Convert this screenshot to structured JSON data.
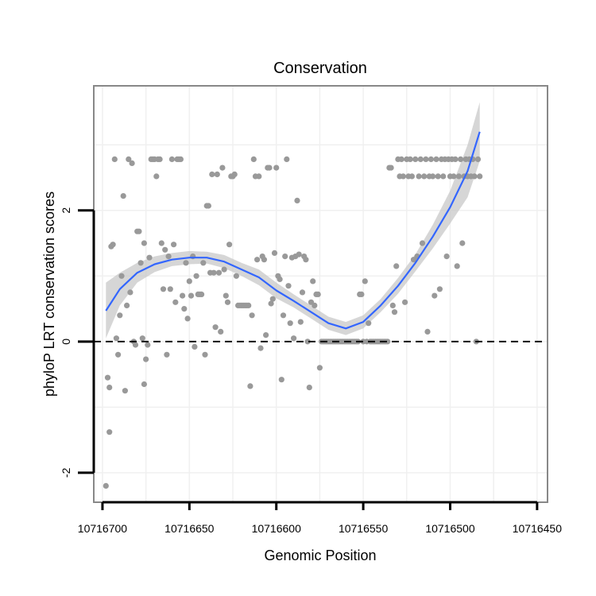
{
  "chart_data": {
    "type": "scatter",
    "title": "Conservation",
    "xlabel": "Genomic Position",
    "ylabel": "phyloP LRT conservation scores",
    "x_reversed": true,
    "xlim": [
      10716705,
      10716444
    ],
    "ylim": [
      -2.45,
      3.9
    ],
    "x_ticks": [
      {
        "value": 10716700,
        "label": "10716700"
      },
      {
        "value": 10716650,
        "label": "10716650"
      },
      {
        "value": 10716600,
        "label": "10716600"
      },
      {
        "value": 10716550,
        "label": "10716550"
      },
      {
        "value": 10716500,
        "label": "10716500"
      },
      {
        "value": 10716450,
        "label": "10716450"
      }
    ],
    "y_ticks": [
      {
        "value": -2,
        "label": "-2"
      },
      {
        "value": 0,
        "label": "0"
      },
      {
        "value": 2,
        "label": "2"
      }
    ],
    "reference_line": {
      "y": 0,
      "style": "dashed"
    },
    "colors": {
      "points": "#999999",
      "smooth_line": "#3366ff",
      "confidence_band": "#c8c8c8",
      "panel_border": "#888888",
      "grid": "#f0f0f0"
    },
    "series": [
      {
        "name": "scores",
        "kind": "points",
        "points": [
          [
            10716698,
            -2.2
          ],
          [
            10716697,
            -0.55
          ],
          [
            10716696,
            -1.38
          ],
          [
            10716696,
            -0.7
          ],
          [
            10716695,
            1.45
          ],
          [
            10716694,
            1.48
          ],
          [
            10716693,
            2.78
          ],
          [
            10716692,
            0.05
          ],
          [
            10716691,
            -0.2
          ],
          [
            10716690,
            0.4
          ],
          [
            10716689,
            1.0
          ],
          [
            10716688,
            2.22
          ],
          [
            10716687,
            -0.75
          ],
          [
            10716686,
            0.55
          ],
          [
            10716685,
            2.78
          ],
          [
            10716684,
            0.75
          ],
          [
            10716683,
            2.72
          ],
          [
            10716682,
            0.0
          ],
          [
            10716681,
            -0.05
          ],
          [
            10716680,
            1.68
          ],
          [
            10716679,
            1.68
          ],
          [
            10716678,
            1.2
          ],
          [
            10716677,
            0.05
          ],
          [
            10716676,
            1.5
          ],
          [
            10716676,
            -0.65
          ],
          [
            10716675,
            -0.27
          ],
          [
            10716674,
            -0.05
          ],
          [
            10716673,
            1.28
          ],
          [
            10716672,
            2.78
          ],
          [
            10716671,
            2.78
          ],
          [
            10716670,
            2.78
          ],
          [
            10716669,
            2.52
          ],
          [
            10716668,
            2.78
          ],
          [
            10716667,
            2.78
          ],
          [
            10716666,
            1.5
          ],
          [
            10716665,
            0.8
          ],
          [
            10716664,
            1.4
          ],
          [
            10716663,
            -0.2
          ],
          [
            10716662,
            1.3
          ],
          [
            10716661,
            0.8
          ],
          [
            10716660,
            2.78
          ],
          [
            10716659,
            1.48
          ],
          [
            10716658,
            0.6
          ],
          [
            10716657,
            2.78
          ],
          [
            10716656,
            2.78
          ],
          [
            10716655,
            2.78
          ],
          [
            10716654,
            0.7
          ],
          [
            10716653,
            0.5
          ],
          [
            10716652,
            1.2
          ],
          [
            10716651,
            0.35
          ],
          [
            10716650,
            0.92
          ],
          [
            10716649,
            0.7
          ],
          [
            10716648,
            1.3
          ],
          [
            10716647,
            -0.08
          ],
          [
            10716646,
            1.0
          ],
          [
            10716645,
            0.72
          ],
          [
            10716644,
            0.72
          ],
          [
            10716643,
            0.72
          ],
          [
            10716642,
            1.2
          ],
          [
            10716641,
            -0.2
          ],
          [
            10716640,
            2.07
          ],
          [
            10716639,
            2.07
          ],
          [
            10716638,
            1.05
          ],
          [
            10716637,
            2.55
          ],
          [
            10716636,
            1.05
          ],
          [
            10716635,
            0.22
          ],
          [
            10716634,
            2.55
          ],
          [
            10716633,
            1.05
          ],
          [
            10716632,
            0.15
          ],
          [
            10716631,
            2.65
          ],
          [
            10716630,
            1.1
          ],
          [
            10716629,
            0.7
          ],
          [
            10716628,
            0.6
          ],
          [
            10716627,
            1.48
          ],
          [
            10716626,
            2.52
          ],
          [
            10716625,
            2.52
          ],
          [
            10716624,
            2.55
          ],
          [
            10716623,
            1.0
          ],
          [
            10716622,
            0.55
          ],
          [
            10716621,
            0.55
          ],
          [
            10716620,
            0.55
          ],
          [
            10716619,
            0.55
          ],
          [
            10716618,
            0.55
          ],
          [
            10716617,
            0.55
          ],
          [
            10716616,
            0.55
          ],
          [
            10716615,
            -0.68
          ],
          [
            10716614,
            0.4
          ],
          [
            10716613,
            2.78
          ],
          [
            10716612,
            2.52
          ],
          [
            10716611,
            1.25
          ],
          [
            10716610,
            2.52
          ],
          [
            10716609,
            -0.1
          ],
          [
            10716608,
            1.3
          ],
          [
            10716607,
            1.25
          ],
          [
            10716606,
            0.1
          ],
          [
            10716605,
            2.65
          ],
          [
            10716604,
            2.65
          ],
          [
            10716603,
            0.58
          ],
          [
            10716602,
            0.65
          ],
          [
            10716601,
            1.35
          ],
          [
            10716600,
            2.65
          ],
          [
            10716599,
            1.0
          ],
          [
            10716598,
            0.95
          ],
          [
            10716597,
            -0.58
          ],
          [
            10716596,
            0.4
          ],
          [
            10716595,
            1.3
          ],
          [
            10716594,
            2.78
          ],
          [
            10716593,
            0.85
          ],
          [
            10716592,
            0.28
          ],
          [
            10716591,
            1.28
          ],
          [
            10716590,
            0.05
          ],
          [
            10716589,
            1.3
          ],
          [
            10716588,
            2.15
          ],
          [
            10716587,
            1.33
          ],
          [
            10716586,
            0.3
          ],
          [
            10716585,
            0.75
          ],
          [
            10716584,
            1.3
          ],
          [
            10716583,
            1.25
          ],
          [
            10716582,
            0.0
          ],
          [
            10716581,
            -0.7
          ],
          [
            10716580,
            0.6
          ],
          [
            10716579,
            0.92
          ],
          [
            10716578,
            0.55
          ],
          [
            10716577,
            0.72
          ],
          [
            10716576,
            0.72
          ],
          [
            10716575,
            -0.4
          ],
          [
            10716574,
            0.0
          ],
          [
            10716573,
            0.0
          ],
          [
            10716572,
            0.0
          ],
          [
            10716571,
            0.0
          ],
          [
            10716570,
            0.0
          ],
          [
            10716569,
            0.0
          ],
          [
            10716568,
            0.0
          ],
          [
            10716567,
            0.0
          ],
          [
            10716566,
            0.0
          ],
          [
            10716565,
            0.0
          ],
          [
            10716564,
            0.0
          ],
          [
            10716563,
            0.0
          ],
          [
            10716562,
            0.0
          ],
          [
            10716561,
            0.0
          ],
          [
            10716560,
            0.0
          ],
          [
            10716559,
            0.0
          ],
          [
            10716558,
            0.0
          ],
          [
            10716557,
            0.0
          ],
          [
            10716556,
            0.0
          ],
          [
            10716555,
            0.0
          ],
          [
            10716554,
            0.0
          ],
          [
            10716553,
            0.0
          ],
          [
            10716552,
            0.72
          ],
          [
            10716551,
            0.72
          ],
          [
            10716550,
            0.0
          ],
          [
            10716549,
            0.92
          ],
          [
            10716548,
            0.0
          ],
          [
            10716547,
            0.28
          ],
          [
            10716546,
            0.0
          ],
          [
            10716545,
            0.0
          ],
          [
            10716544,
            0.0
          ],
          [
            10716543,
            0.0
          ],
          [
            10716542,
            0.0
          ],
          [
            10716541,
            0.0
          ],
          [
            10716540,
            0.0
          ],
          [
            10716539,
            0.0
          ],
          [
            10716538,
            0.0
          ],
          [
            10716537,
            0.0
          ],
          [
            10716536,
            0.0
          ],
          [
            10716535,
            2.65
          ],
          [
            10716534,
            2.65
          ],
          [
            10716533,
            0.55
          ],
          [
            10716532,
            0.45
          ],
          [
            10716531,
            1.15
          ],
          [
            10716530,
            2.78
          ],
          [
            10716529,
            2.52
          ],
          [
            10716528,
            2.78
          ],
          [
            10716527,
            2.52
          ],
          [
            10716526,
            0.6
          ],
          [
            10716525,
            2.78
          ],
          [
            10716524,
            2.52
          ],
          [
            10716523,
            2.78
          ],
          [
            10716522,
            2.52
          ],
          [
            10716521,
            1.25
          ],
          [
            10716520,
            2.78
          ],
          [
            10716519,
            1.3
          ],
          [
            10716518,
            2.52
          ],
          [
            10716517,
            2.78
          ],
          [
            10716516,
            1.5
          ],
          [
            10716515,
            2.52
          ],
          [
            10716514,
            2.78
          ],
          [
            10716513,
            0.15
          ],
          [
            10716512,
            2.52
          ],
          [
            10716511,
            2.78
          ],
          [
            10716510,
            2.52
          ],
          [
            10716509,
            0.7
          ],
          [
            10716508,
            2.78
          ],
          [
            10716507,
            2.52
          ],
          [
            10716506,
            0.8
          ],
          [
            10716505,
            2.78
          ],
          [
            10716504,
            2.52
          ],
          [
            10716503,
            2.78
          ],
          [
            10716502,
            1.3
          ],
          [
            10716501,
            2.78
          ],
          [
            10716500,
            2.52
          ],
          [
            10716499,
            2.78
          ],
          [
            10716498,
            2.52
          ],
          [
            10716497,
            2.78
          ],
          [
            10716496,
            1.15
          ],
          [
            10716495,
            2.52
          ],
          [
            10716494,
            2.78
          ],
          [
            10716493,
            1.5
          ],
          [
            10716492,
            2.52
          ],
          [
            10716491,
            2.78
          ],
          [
            10716490,
            2.52
          ],
          [
            10716489,
            2.78
          ],
          [
            10716488,
            2.52
          ],
          [
            10716487,
            2.78
          ],
          [
            10716486,
            2.52
          ],
          [
            10716485,
            0.0
          ],
          [
            10716484,
            2.78
          ],
          [
            10716483,
            2.52
          ]
        ]
      },
      {
        "name": "smooth",
        "kind": "line",
        "points": [
          [
            10716698,
            0.47
          ],
          [
            10716690,
            0.8
          ],
          [
            10716680,
            1.05
          ],
          [
            10716670,
            1.18
          ],
          [
            10716660,
            1.25
          ],
          [
            10716650,
            1.28
          ],
          [
            10716640,
            1.28
          ],
          [
            10716630,
            1.22
          ],
          [
            10716620,
            1.1
          ],
          [
            10716610,
            0.98
          ],
          [
            10716600,
            0.78
          ],
          [
            10716590,
            0.62
          ],
          [
            10716580,
            0.45
          ],
          [
            10716570,
            0.28
          ],
          [
            10716560,
            0.2
          ],
          [
            10716550,
            0.3
          ],
          [
            10716540,
            0.55
          ],
          [
            10716530,
            0.85
          ],
          [
            10716520,
            1.2
          ],
          [
            10716510,
            1.6
          ],
          [
            10716500,
            2.05
          ],
          [
            10716490,
            2.6
          ],
          [
            10716483,
            3.2
          ]
        ],
        "ci_upper": [
          0.9,
          1.05,
          1.2,
          1.3,
          1.35,
          1.38,
          1.37,
          1.32,
          1.2,
          1.1,
          0.9,
          0.72,
          0.55,
          0.38,
          0.3,
          0.4,
          0.65,
          0.97,
          1.33,
          1.78,
          2.3,
          3.0,
          3.65
        ],
        "ci_lower": [
          0.05,
          0.55,
          0.9,
          1.06,
          1.15,
          1.18,
          1.19,
          1.12,
          1.0,
          0.86,
          0.66,
          0.52,
          0.35,
          0.18,
          0.1,
          0.2,
          0.45,
          0.73,
          1.07,
          1.42,
          1.8,
          2.2,
          2.75
        ]
      }
    ]
  }
}
